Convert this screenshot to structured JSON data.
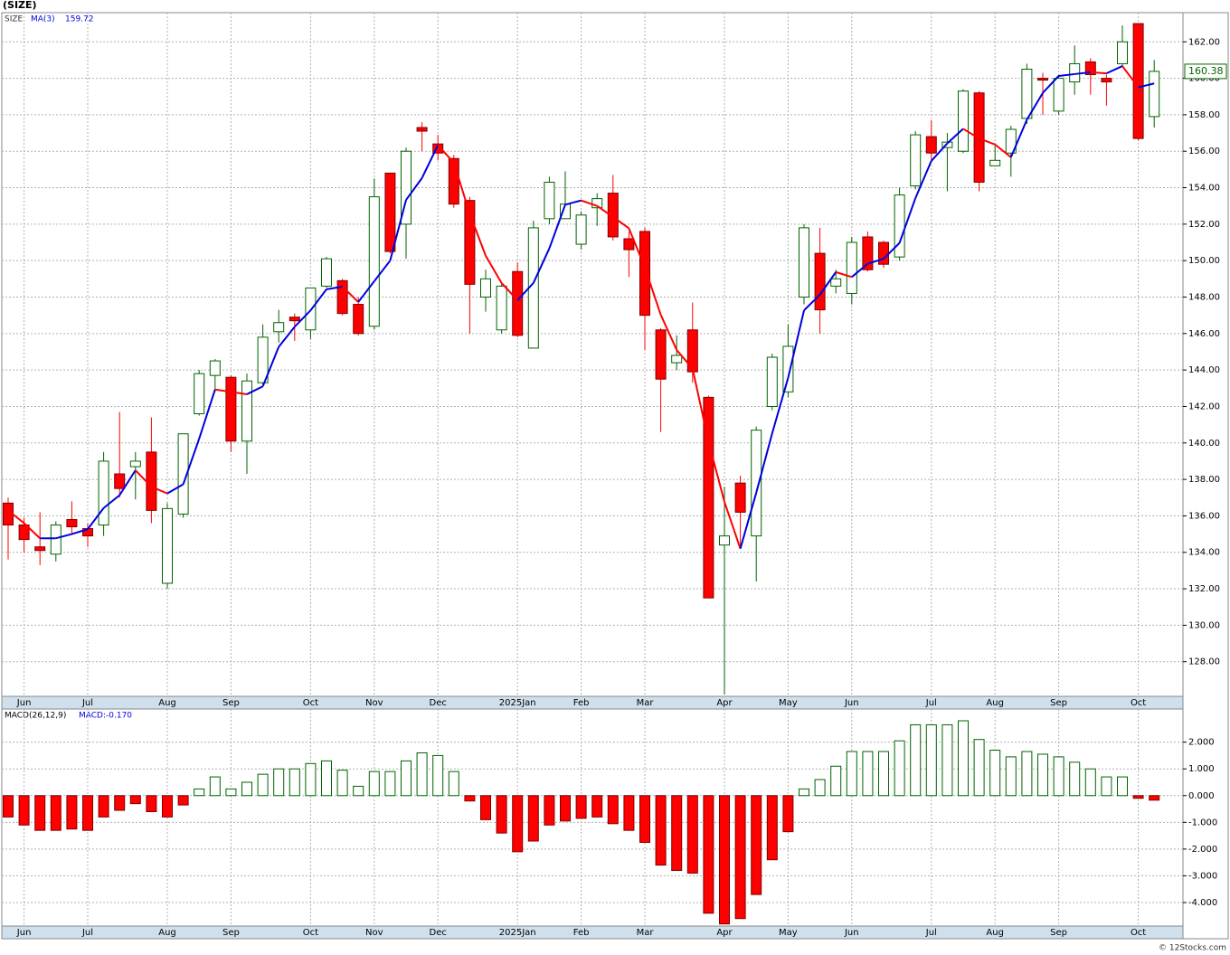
{
  "chart_data": [
    {
      "type": "candlestick",
      "title": "(SIZE)",
      "symbol": "SIZE",
      "categories": [
        null,
        "Jun",
        null,
        null,
        null,
        "Jul",
        null,
        null,
        null,
        null,
        "Aug",
        null,
        null,
        null,
        "Sep",
        null,
        null,
        null,
        null,
        "Oct",
        null,
        null,
        null,
        "Nov",
        null,
        null,
        null,
        "Dec",
        null,
        null,
        null,
        null,
        "2025Jan",
        null,
        null,
        null,
        "Feb",
        null,
        null,
        null,
        "Mar",
        null,
        null,
        null,
        null,
        "Apr",
        null,
        null,
        null,
        "May",
        null,
        null,
        null,
        "Jun",
        null,
        null,
        null,
        null,
        "Jul",
        null,
        null,
        null,
        "Aug",
        null,
        null,
        null,
        "Sep",
        null,
        null,
        null,
        null,
        "Oct",
        null
      ],
      "open": [
        136.7,
        135.5,
        134.3,
        133.9,
        135.8,
        135.3,
        135.5,
        138.3,
        138.7,
        139.5,
        132.3,
        136.1,
        141.6,
        143.7,
        143.6,
        140.1,
        143.3,
        146.1,
        146.9,
        146.2,
        148.6,
        148.9,
        147.6,
        146.4,
        154.8,
        152.0,
        157.3,
        156.4,
        155.6,
        153.3,
        148.0,
        146.2,
        149.4,
        145.2,
        152.3,
        152.3,
        150.9,
        152.9,
        153.7,
        151.2,
        151.6,
        146.2,
        144.4,
        146.2,
        142.5,
        134.4,
        137.8,
        134.9,
        142.0,
        142.8,
        148.0,
        150.4,
        148.6,
        148.2,
        151.3,
        151.0,
        150.2,
        154.1,
        156.8,
        156.2,
        156.0,
        159.2,
        155.2,
        155.9,
        157.8,
        160.0,
        158.2,
        159.8,
        160.9,
        160.0,
        160.8,
        163.0,
        157.9
      ],
      "high": [
        137.0,
        135.9,
        136.2,
        135.7,
        136.8,
        135.6,
        139.5,
        141.7,
        139.5,
        141.4,
        136.7,
        140.5,
        144.0,
        144.6,
        143.7,
        143.8,
        146.5,
        147.3,
        147.1,
        148.5,
        150.2,
        149.0,
        148.0,
        154.5,
        154.8,
        156.2,
        157.6,
        156.9,
        155.8,
        153.5,
        149.5,
        148.7,
        149.9,
        152.2,
        154.6,
        154.9,
        152.7,
        153.7,
        154.7,
        151.6,
        151.8,
        146.3,
        145.9,
        147.7,
        142.6,
        137.6,
        138.2,
        140.9,
        144.9,
        146.5,
        152.0,
        151.8,
        149.5,
        151.3,
        151.6,
        151.1,
        154.0,
        157.1,
        157.7,
        157.0,
        159.4,
        159.3,
        156.3,
        157.4,
        160.8,
        160.3,
        160.2,
        161.8,
        161.1,
        160.2,
        162.9,
        163.0,
        161.0
      ],
      "low": [
        133.6,
        134.0,
        133.3,
        133.5,
        135.0,
        134.3,
        134.9,
        137.0,
        136.9,
        135.6,
        132.0,
        135.9,
        141.5,
        142.8,
        139.5,
        138.3,
        143.2,
        145.5,
        145.6,
        145.7,
        148.5,
        147.0,
        145.9,
        146.2,
        150.4,
        150.1,
        156.0,
        155.5,
        152.9,
        146.0,
        147.2,
        146.0,
        145.8,
        145.2,
        152.0,
        152.3,
        150.6,
        151.9,
        151.1,
        149.1,
        145.1,
        140.6,
        144.0,
        143.3,
        131.5,
        126.2,
        134.3,
        132.4,
        141.8,
        142.5,
        147.6,
        146.0,
        148.2,
        147.6,
        149.4,
        149.6,
        150.0,
        153.9,
        155.5,
        153.8,
        155.9,
        153.8,
        155.2,
        154.6,
        157.5,
        158.0,
        158.0,
        159.1,
        159.1,
        158.5,
        160.6,
        156.6,
        157.3
      ],
      "close": [
        135.5,
        134.7,
        134.1,
        135.5,
        135.4,
        134.9,
        139.0,
        137.5,
        139.0,
        136.3,
        136.4,
        140.5,
        143.8,
        144.5,
        140.1,
        143.4,
        145.8,
        146.6,
        146.7,
        148.5,
        150.1,
        147.1,
        146.0,
        153.5,
        150.5,
        156.0,
        157.1,
        155.9,
        153.1,
        148.7,
        149.0,
        148.6,
        145.9,
        151.8,
        154.3,
        153.1,
        152.5,
        153.4,
        151.3,
        150.6,
        147.0,
        143.5,
        144.8,
        143.9,
        131.5,
        134.9,
        136.2,
        140.7,
        144.7,
        145.3,
        151.8,
        147.3,
        149.0,
        151.0,
        149.5,
        149.8,
        153.6,
        156.9,
        155.9,
        156.5,
        159.3,
        154.3,
        155.5,
        157.2,
        160.5,
        159.9,
        160.0,
        160.8,
        160.2,
        159.8,
        162.0,
        156.7,
        160.38
      ],
      "ma": {
        "name": "MA(3)",
        "up_color": "#0000dd",
        "down_color": "#ff0000",
        "values": [
          136.3,
          135.6,
          134.77,
          134.77,
          135.0,
          135.27,
          136.43,
          137.13,
          138.5,
          137.6,
          137.23,
          137.73,
          140.23,
          142.93,
          142.8,
          142.67,
          143.1,
          145.27,
          146.37,
          147.27,
          148.43,
          148.57,
          147.73,
          148.87,
          150.0,
          153.33,
          154.53,
          156.33,
          155.37,
          152.57,
          150.27,
          148.77,
          147.83,
          148.77,
          150.67,
          153.07,
          153.3,
          153.0,
          152.4,
          151.77,
          149.63,
          147.03,
          145.1,
          144.07,
          140.07,
          136.77,
          134.2,
          137.27,
          140.53,
          143.57,
          147.27,
          148.13,
          149.37,
          149.1,
          149.83,
          150.1,
          150.97,
          153.43,
          155.47,
          156.43,
          157.23,
          156.7,
          156.37,
          155.67,
          157.73,
          159.2,
          160.13,
          160.23,
          160.33,
          160.27,
          160.67,
          159.5,
          159.72
        ]
      },
      "up_color": "#006400",
      "down_color": "#ff0000",
      "grid": true,
      "ylim": [
        126.1,
        163.6
      ],
      "yticks": [
        {
          "value": 128,
          "label": "128.00"
        },
        {
          "value": 130,
          "label": "130.00"
        },
        {
          "value": 132,
          "label": "132.00"
        },
        {
          "value": 134,
          "label": "134.00"
        },
        {
          "value": 136,
          "label": "136.00"
        },
        {
          "value": 138,
          "label": "138.00"
        },
        {
          "value": 140,
          "label": "140.00"
        },
        {
          "value": 142,
          "label": "142.00"
        },
        {
          "value": 144,
          "label": "144.00"
        },
        {
          "value": 146,
          "label": "146.00"
        },
        {
          "value": 148,
          "label": "148.00"
        },
        {
          "value": 150,
          "label": "150.00"
        },
        {
          "value": 152,
          "label": "152.00"
        },
        {
          "value": 154,
          "label": "154.00"
        },
        {
          "value": 156,
          "label": "156.00"
        },
        {
          "value": 158,
          "label": "158.00"
        },
        {
          "value": 160,
          "label": "160.00"
        },
        {
          "value": 162,
          "label": "162.00"
        }
      ]
    },
    {
      "type": "bar",
      "name": "MACD(26,12,9)",
      "readout": "MACD:-0.170",
      "values": [
        -0.8,
        -1.1,
        -1.3,
        -1.3,
        -1.25,
        -1.3,
        -0.8,
        -0.55,
        -0.3,
        -0.6,
        -0.8,
        -0.35,
        0.25,
        0.7,
        0.25,
        0.5,
        0.8,
        1.0,
        1.0,
        1.2,
        1.3,
        0.95,
        0.35,
        0.9,
        0.9,
        1.3,
        1.6,
        1.5,
        0.9,
        -0.2,
        -0.9,
        -1.4,
        -2.1,
        -1.7,
        -1.1,
        -0.95,
        -0.85,
        -0.8,
        -1.05,
        -1.3,
        -1.75,
        -2.6,
        -2.8,
        -2.9,
        -4.4,
        -4.8,
        -4.6,
        -3.7,
        -2.4,
        -1.35,
        0.25,
        0.6,
        1.1,
        1.65,
        1.65,
        1.65,
        2.05,
        2.65,
        2.65,
        2.65,
        2.8,
        2.1,
        1.7,
        1.45,
        1.65,
        1.55,
        1.45,
        1.25,
        1.0,
        0.7,
        0.7,
        -0.1,
        -0.17
      ],
      "up_color": "#006400",
      "down_color": "#ff0000",
      "grid": true,
      "ylim": [
        -4.88,
        3.24
      ],
      "yticks": [
        {
          "value": 2,
          "label": "2.000"
        },
        {
          "value": 1,
          "label": "1.000"
        },
        {
          "value": 0,
          "label": "0.000"
        },
        {
          "value": -1,
          "label": "-1.000"
        },
        {
          "value": -2,
          "label": "-2.000"
        },
        {
          "value": -3,
          "label": "-3.000"
        },
        {
          "value": -4,
          "label": "-4.000"
        }
      ]
    }
  ],
  "footer": "© 12Stocks.com"
}
